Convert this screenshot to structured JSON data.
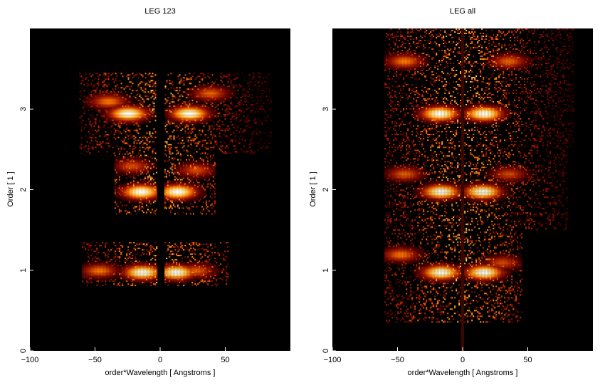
{
  "chart_data": [
    {
      "type": "heatmap",
      "title": "LEG 123",
      "xlabel": "order*Wavelength [ Angstroms ]",
      "ylabel": "Order [ 1 ]",
      "xlim": [
        -100,
        100
      ],
      "ylim": [
        0,
        4
      ],
      "xticks": [
        -100,
        -50,
        0,
        50
      ],
      "yticks": [
        0,
        1,
        2,
        3
      ],
      "grid": false,
      "colormap": [
        "#000000",
        "#5a0000",
        "#b02000",
        "#ff7a00",
        "#ffd060",
        "#ffffff"
      ],
      "bands": [
        {
          "order": 1,
          "y_range": [
            0.82,
            1.35
          ],
          "x_range": [
            -60,
            52
          ],
          "hotspots": [
            {
              "x": -14,
              "y": 0.98,
              "intensity": 1.0
            },
            {
              "x": 12,
              "y": 0.98,
              "intensity": 1.0
            },
            {
              "x": -47,
              "y": 1.0,
              "intensity": 0.6
            },
            {
              "x": 27,
              "y": 1.0,
              "intensity": 0.55
            }
          ]
        },
        {
          "order": 2,
          "y_range": [
            1.7,
            2.45
          ],
          "x_range": [
            -35,
            42
          ],
          "hotspots": [
            {
              "x": -15,
              "y": 1.98,
              "intensity": 1.0
            },
            {
              "x": 13,
              "y": 1.98,
              "intensity": 1.0
            },
            {
              "x": -22,
              "y": 2.3,
              "intensity": 0.5
            },
            {
              "x": 27,
              "y": 2.25,
              "intensity": 0.5
            }
          ]
        },
        {
          "order": 3,
          "y_range": [
            2.45,
            3.45
          ],
          "x_range": [
            -62,
            85
          ],
          "hotspots": [
            {
              "x": -25,
              "y": 2.95,
              "intensity": 1.0
            },
            {
              "x": 22,
              "y": 2.95,
              "intensity": 1.0
            },
            {
              "x": -40,
              "y": 3.1,
              "intensity": 0.6
            },
            {
              "x": 38,
              "y": 3.2,
              "intensity": 0.55
            }
          ]
        }
      ]
    },
    {
      "type": "heatmap",
      "title": "LEG all",
      "xlabel": "order*Wavelength [ Angstroms ]",
      "ylabel": "Order [ 1 ]",
      "xlim": [
        -100,
        100
      ],
      "ylim": [
        0,
        4
      ],
      "xticks": [
        -100,
        -50,
        0,
        50
      ],
      "yticks": [
        0,
        1,
        2,
        3
      ],
      "grid": false,
      "colormap": [
        "#000000",
        "#5a0000",
        "#b02000",
        "#ff7a00",
        "#ffd060",
        "#ffffff"
      ],
      "bands": [
        {
          "order": 1,
          "y_range": [
            0.35,
            1.48
          ],
          "x_range": [
            -60,
            45
          ],
          "hotspots": [
            {
              "x": -17,
              "y": 0.98,
              "intensity": 1.0
            },
            {
              "x": 16,
              "y": 0.98,
              "intensity": 1.0
            },
            {
              "x": -48,
              "y": 1.2,
              "intensity": 0.6
            },
            {
              "x": 30,
              "y": 1.1,
              "intensity": 0.5
            }
          ]
        },
        {
          "order": 2,
          "y_range": [
            1.5,
            2.55
          ],
          "x_range": [
            -60,
            80
          ],
          "hotspots": [
            {
              "x": -17,
              "y": 1.98,
              "intensity": 1.0
            },
            {
              "x": 15,
              "y": 1.98,
              "intensity": 1.0
            },
            {
              "x": -45,
              "y": 2.2,
              "intensity": 0.55
            },
            {
              "x": 35,
              "y": 2.2,
              "intensity": 0.5
            }
          ]
        },
        {
          "order": 3,
          "y_range": [
            2.55,
            4.0
          ],
          "x_range": [
            -60,
            85
          ],
          "hotspots": [
            {
              "x": -18,
              "y": 2.95,
              "intensity": 1.0
            },
            {
              "x": 16,
              "y": 2.95,
              "intensity": 1.0
            },
            {
              "x": -45,
              "y": 3.6,
              "intensity": 0.6
            },
            {
              "x": 35,
              "y": 3.6,
              "intensity": 0.55
            }
          ]
        }
      ],
      "zero_line_x": 0
    }
  ]
}
